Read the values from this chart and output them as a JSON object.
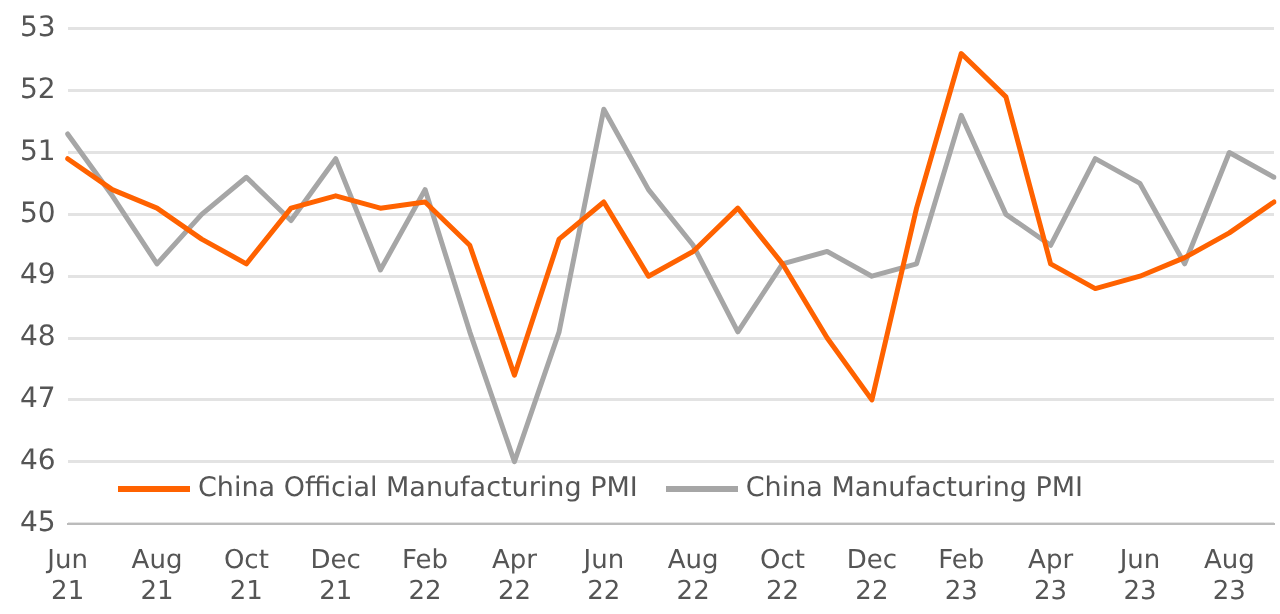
{
  "chart_data": {
    "type": "line",
    "categories": [
      "Jun 21",
      null,
      "Aug 21",
      null,
      "Oct 21",
      null,
      "Dec 21",
      null,
      "Feb 22",
      null,
      "Apr 22",
      null,
      "Jun 22",
      null,
      "Aug 22",
      null,
      "Oct 22",
      null,
      "Dec 22",
      null,
      "Feb 23",
      null,
      "Apr 23",
      null,
      "Jun 23",
      null,
      "Aug 23",
      null
    ],
    "series": [
      {
        "name": "China Official Manufacturing PMI",
        "color": "#ff6200",
        "values": [
          50.9,
          50.4,
          50.1,
          49.6,
          49.2,
          50.1,
          50.3,
          50.1,
          50.2,
          49.5,
          47.4,
          49.6,
          50.2,
          49.0,
          49.4,
          50.1,
          49.2,
          48.0,
          47.0,
          50.1,
          52.6,
          51.9,
          49.2,
          48.8,
          49.0,
          49.3,
          49.7,
          50.2
        ]
      },
      {
        "name": "China Manufacturing PMI",
        "color": "#a6a6a6",
        "values": [
          51.3,
          50.3,
          49.2,
          50.0,
          50.6,
          49.9,
          50.9,
          49.1,
          50.4,
          48.1,
          46.0,
          48.1,
          51.7,
          50.4,
          49.5,
          48.1,
          49.2,
          49.4,
          49.0,
          49.2,
          51.6,
          50.0,
          49.5,
          50.9,
          50.5,
          49.2,
          51.0,
          50.6
        ]
      }
    ],
    "ylim": [
      45,
      53
    ],
    "yticks": [
      45,
      46,
      47,
      48,
      49,
      50,
      51,
      52,
      53
    ],
    "grid": "y",
    "legend": "bottom",
    "marker": "none",
    "line_style": "solid"
  }
}
